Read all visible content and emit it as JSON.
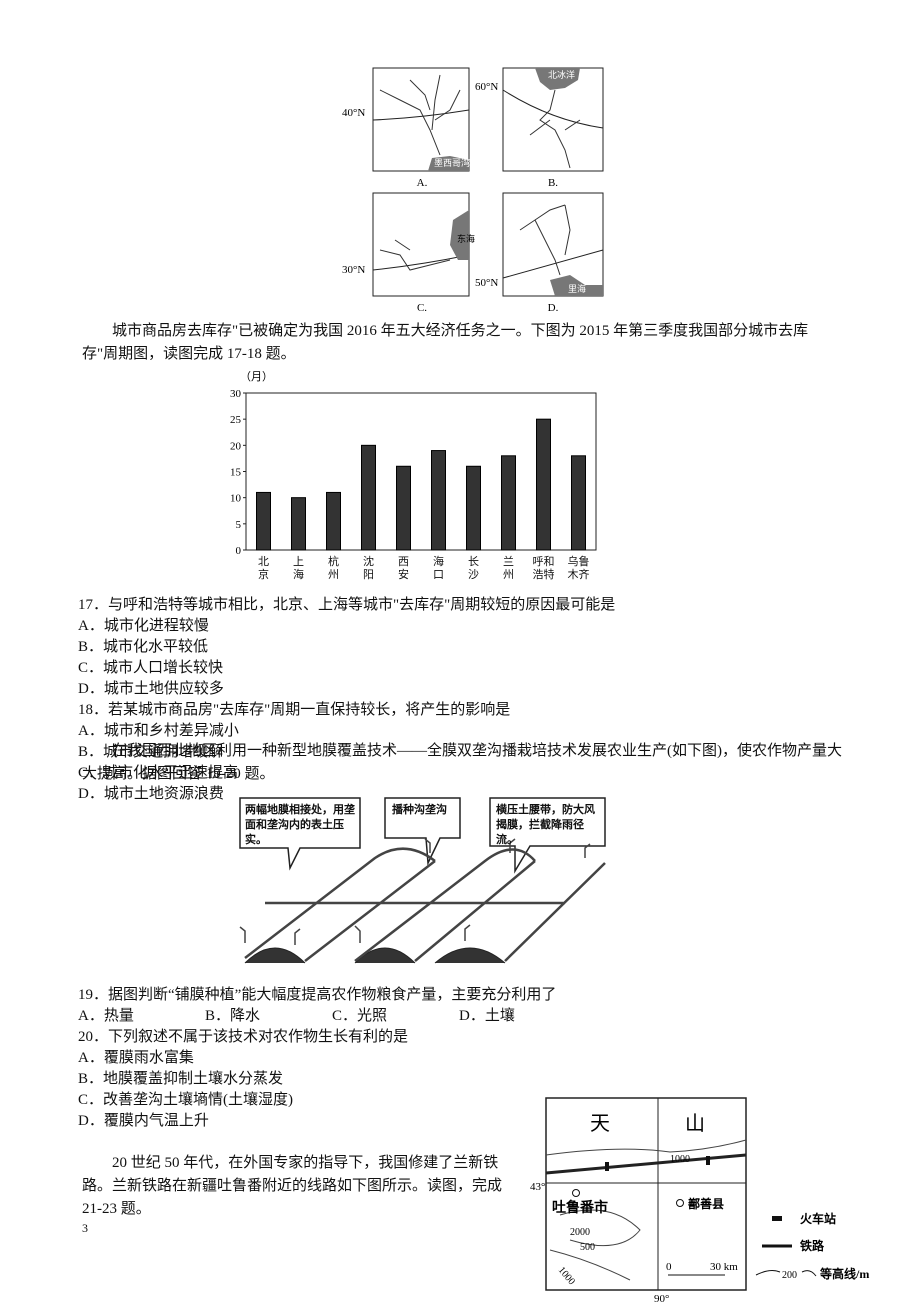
{
  "maps": [
    {
      "label": "A.",
      "latitude": "40°N",
      "sea": "墨西哥湾"
    },
    {
      "label": "B.",
      "latitude": "60°N",
      "sea": "北冰洋"
    },
    {
      "label": "C.",
      "latitude": "30°N",
      "sea": "东海"
    },
    {
      "label": "D.",
      "latitude": "50°N",
      "sea": "里海"
    }
  ],
  "passage1": "城市商品房去库存\"已被确定为我国 2016 年五大经济任务之一。下图为 2015 年第三季度我国部分城市去库存\"周期图，读图完成 17-18 题。",
  "chart_data": {
    "type": "bar",
    "y_unit": "（月）",
    "categories": [
      "北京",
      "上海",
      "杭州",
      "沈阳",
      "西安",
      "海口",
      "长沙",
      "兰州",
      "呼和浩特",
      "乌鲁木齐"
    ],
    "values": [
      11,
      10,
      11,
      20,
      16,
      19,
      16,
      18,
      25,
      18
    ],
    "color": "#333333",
    "ylim": [
      0,
      30
    ],
    "yticks": [
      0,
      5,
      10,
      15,
      20,
      25,
      30
    ],
    "grid": false
  },
  "questions1": [
    {
      "stem": "17．与呼和浩特等城市相比，北京、上海等城市\"去库存\"周期较短的原因最可能是",
      "options": [
        "A．城市化进程较慢",
        "B．城市化水平较低",
        "C．城市人口增长较快",
        "D．城市土地供应较多"
      ]
    },
    {
      "stem": "18．若某城市商品房\"去库存\"周期一直保持较长，将产生的影响是",
      "options": [
        "A．城市和乡村差异减小",
        "B．城市交通拥堵缓解",
        "C．城市化水平迅速提高",
        "D．城市土地资源浪费"
      ]
    }
  ],
  "passage2": "在我国西北地区利用一种新型地膜覆盖技术——全膜双垄沟播栽培技术发展农业生产(如下图)，使农作物产量大大提高。据图回答 19-20 题。",
  "diagram": {
    "callouts": [
      "两幅地膜相接处，用垄面和垄沟内的表土压实。",
      "播种沟垄沟",
      "横压土腰带，防大风揭膜，拦截降雨径流。"
    ]
  },
  "questions2": [
    {
      "stem": "19．据图判断“铺膜种植”能大幅度提高农作物粮食产量，主要充分利用了",
      "options": [
        "A．热量",
        "B．降水",
        "C．光照",
        "D．土壤"
      ]
    },
    {
      "stem": "20．下列叙述不属于该技术对农作物生长有利的是",
      "options": [
        "A．覆膜雨水富集",
        "B．地膜覆盖抑制土壤水分蒸发",
        "C．改善垄沟土壤墒情(土壤湿度)",
        "D．覆膜内气温上升"
      ]
    }
  ],
  "passage3": "20 世纪 50 年代，在外国专家的指导下，我国修建了兰新铁路。兰新铁路在新疆吐鲁番附近的线路如下图所示。读图，完成 21-23 题。",
  "railmap": {
    "labels": [
      "天",
      "山"
    ],
    "contour_top": "1000",
    "latitude": "43°",
    "longitude": "90°",
    "cities": [
      "吐鲁番市",
      "鄯善县"
    ],
    "contours": [
      "2000",
      "500",
      "1000"
    ],
    "scale": [
      "0",
      "30 km"
    ],
    "legend": [
      "火车站",
      "铁路",
      "等高线/m"
    ],
    "legend_contour": "200"
  },
  "page_number": "3"
}
